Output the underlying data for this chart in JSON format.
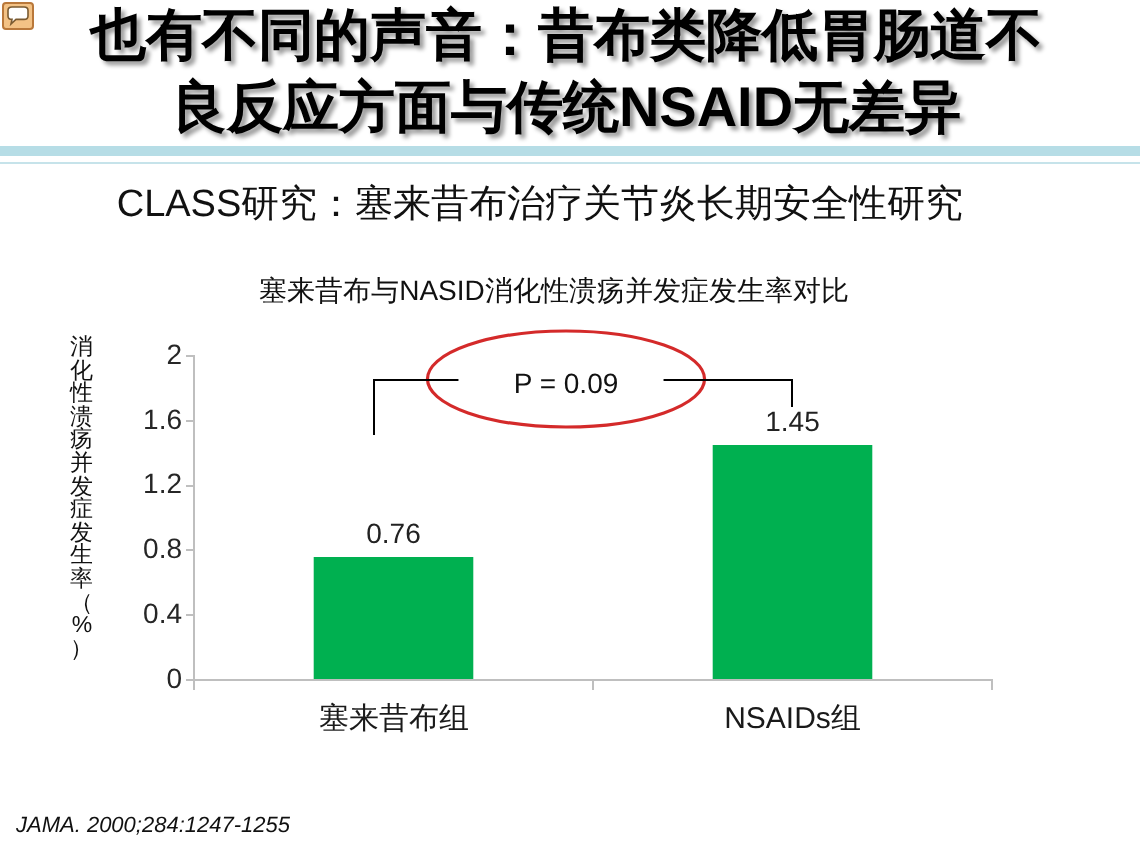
{
  "chart_data": {
    "type": "bar",
    "title": "也有不同的声音：昔布类降低胃肠道不良反应方面与传统NSAID无差异",
    "subtitle": "CLASS研究：塞来昔布治疗关节炎长期安全性研究",
    "ylabel": "消化性溃疡并发症发生率（%）",
    "categories": [
      "塞来昔布组",
      "NSAIDs组"
    ],
    "values": [
      0.76,
      1.45
    ],
    "color": "#00b050",
    "ylim": [
      0,
      2
    ],
    "yticks": [
      0,
      0.4,
      0.8,
      1.2,
      1.6,
      2
    ],
    "data_labels": true,
    "annotations": [
      "塞来昔布与NASID消化性溃疡并发症发生率对比",
      "P = 0.09",
      "JAMA. 2000;284:1247-1255"
    ]
  }
}
